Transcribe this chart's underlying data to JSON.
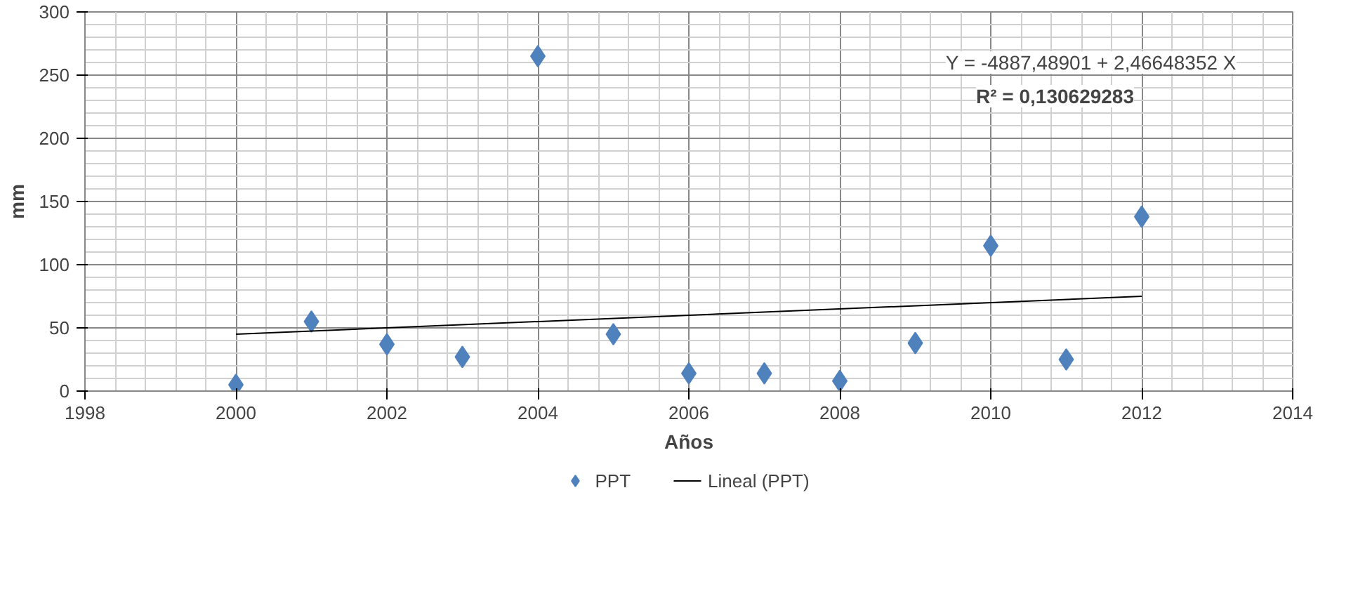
{
  "chart_data": {
    "type": "scatter",
    "xlabel": "Años",
    "ylabel": "mm",
    "xlim": [
      1998,
      2014
    ],
    "xticks": [
      1998,
      2000,
      2002,
      2004,
      2006,
      2008,
      2010,
      2012,
      2014
    ],
    "ylim": [
      0,
      300
    ],
    "yticks": [
      0,
      50,
      100,
      150,
      200,
      250,
      300
    ],
    "grid": true,
    "legend": "bottom",
    "annotations": [
      "Y = -4887,48901 + 2,46648352 X",
      "R² = 0,130629283"
    ],
    "series": [
      {
        "name": "PPT",
        "marker": "diamond",
        "color": "#4f81bd",
        "x": [
          2000,
          2001,
          2002,
          2003,
          2004,
          2005,
          2006,
          2007,
          2008,
          2009,
          2010,
          2011,
          2012
        ],
        "values": [
          5,
          55,
          37,
          27,
          265,
          45,
          14,
          14,
          8,
          38,
          115,
          25,
          138
        ]
      },
      {
        "name": "Lineal (PPT)",
        "type": "line",
        "color": "#000000",
        "x": [
          2000,
          2012
        ],
        "values": [
          45,
          75
        ]
      }
    ]
  }
}
